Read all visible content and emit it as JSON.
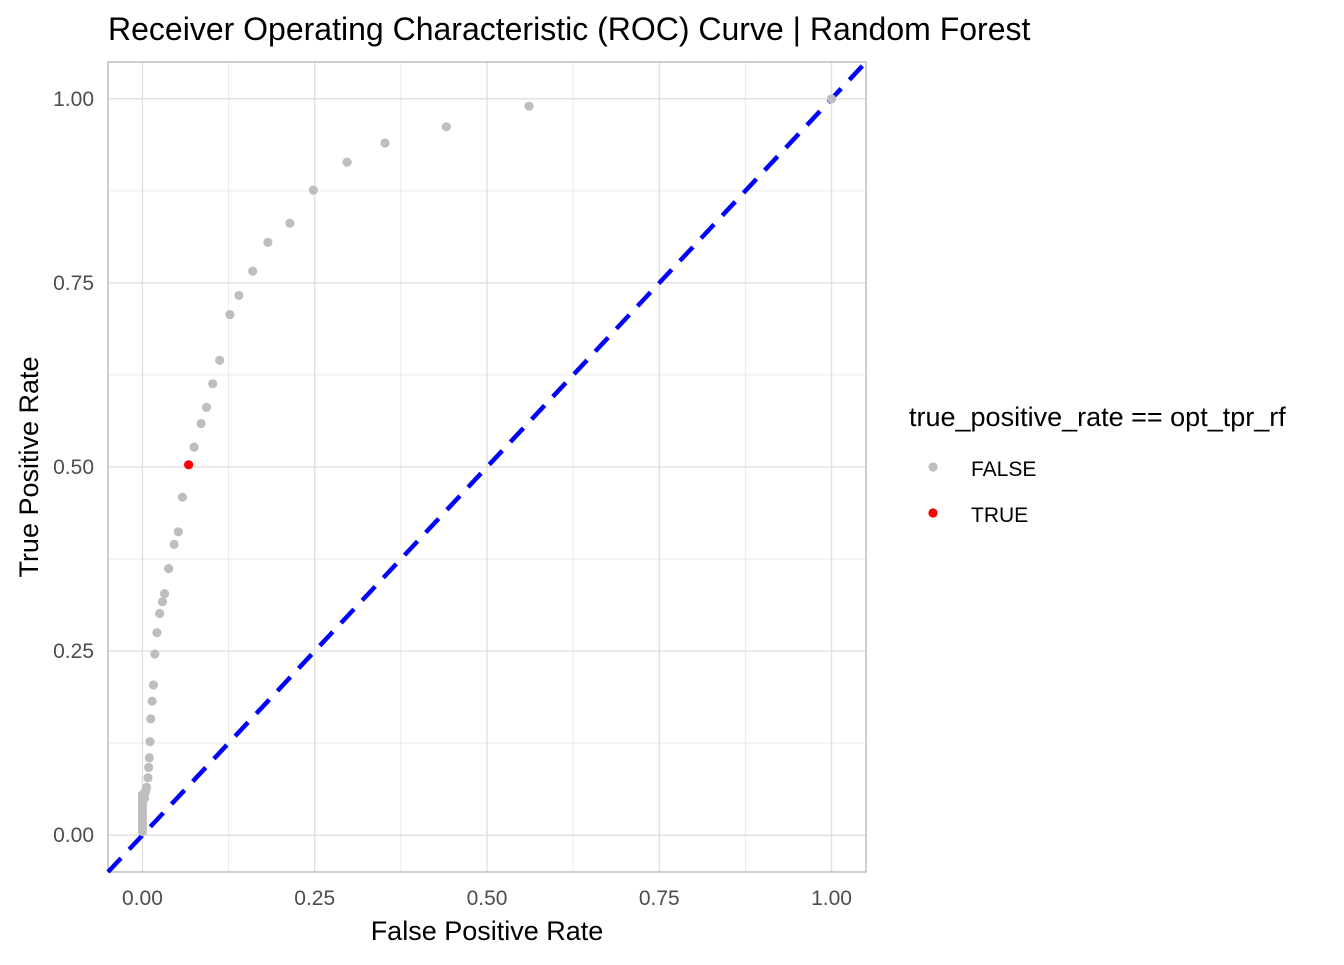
{
  "chart_data": {
    "type": "scatter",
    "title": "Receiver Operating Characteristic (ROC) Curve | Random Forest",
    "xlabel": "False Positive Rate",
    "ylabel": "True Positive Rate",
    "xlim": [
      -0.05,
      1.05
    ],
    "ylim": [
      -0.05,
      1.05
    ],
    "x_ticks": [
      0.0,
      0.25,
      0.5,
      0.75,
      1.0
    ],
    "x_tick_labels": [
      "0.00",
      "0.25",
      "0.50",
      "0.75",
      "1.00"
    ],
    "y_ticks": [
      0.0,
      0.25,
      0.5,
      0.75,
      1.0
    ],
    "y_tick_labels": [
      "0.00",
      "0.25",
      "0.50",
      "0.75",
      "1.00"
    ],
    "grid": true,
    "legend": {
      "title": "true_positive_rate == opt_tpr_rf",
      "placement": "right",
      "entries": [
        {
          "label": "FALSE",
          "color": "#bebebe"
        },
        {
          "label": "TRUE",
          "color": "#ff0000"
        }
      ]
    },
    "reference_line": {
      "slope": 1,
      "intercept": 0,
      "style": "dashed",
      "color": "#0000ff"
    },
    "series": [
      {
        "name": "FALSE",
        "color": "#bebebe",
        "points": [
          [
            0.0,
            0.005
          ],
          [
            0.0,
            0.01
          ],
          [
            0.0,
            0.015
          ],
          [
            0.0,
            0.02
          ],
          [
            0.0,
            0.025
          ],
          [
            0.0,
            0.03
          ],
          [
            0.0,
            0.035
          ],
          [
            0.0,
            0.04
          ],
          [
            0.0,
            0.045
          ],
          [
            0.0,
            0.05
          ],
          [
            0.0,
            0.055
          ],
          [
            0.003,
            0.05
          ],
          [
            0.004,
            0.058
          ],
          [
            0.005,
            0.062
          ],
          [
            0.006,
            0.065
          ],
          [
            0.008,
            0.078
          ],
          [
            0.009,
            0.092
          ],
          [
            0.01,
            0.105
          ],
          [
            0.011,
            0.127
          ],
          [
            0.012,
            0.158
          ],
          [
            0.014,
            0.182
          ],
          [
            0.016,
            0.204
          ],
          [
            0.018,
            0.246
          ],
          [
            0.021,
            0.275
          ],
          [
            0.025,
            0.301
          ],
          [
            0.029,
            0.317
          ],
          [
            0.032,
            0.328
          ],
          [
            0.038,
            0.362
          ],
          [
            0.046,
            0.395
          ],
          [
            0.052,
            0.412
          ],
          [
            0.058,
            0.459
          ],
          [
            0.075,
            0.527
          ],
          [
            0.085,
            0.559
          ],
          [
            0.093,
            0.581
          ],
          [
            0.102,
            0.613
          ],
          [
            0.112,
            0.645
          ],
          [
            0.127,
            0.707
          ],
          [
            0.14,
            0.733
          ],
          [
            0.16,
            0.766
          ],
          [
            0.182,
            0.805
          ],
          [
            0.214,
            0.831
          ],
          [
            0.248,
            0.876
          ],
          [
            0.297,
            0.914
          ],
          [
            0.352,
            0.94
          ],
          [
            0.441,
            0.962
          ],
          [
            0.561,
            0.99
          ],
          [
            1.0,
            1.0
          ]
        ]
      },
      {
        "name": "TRUE",
        "color": "#ff0000",
        "points": [
          [
            0.067,
            0.503
          ]
        ]
      }
    ]
  }
}
